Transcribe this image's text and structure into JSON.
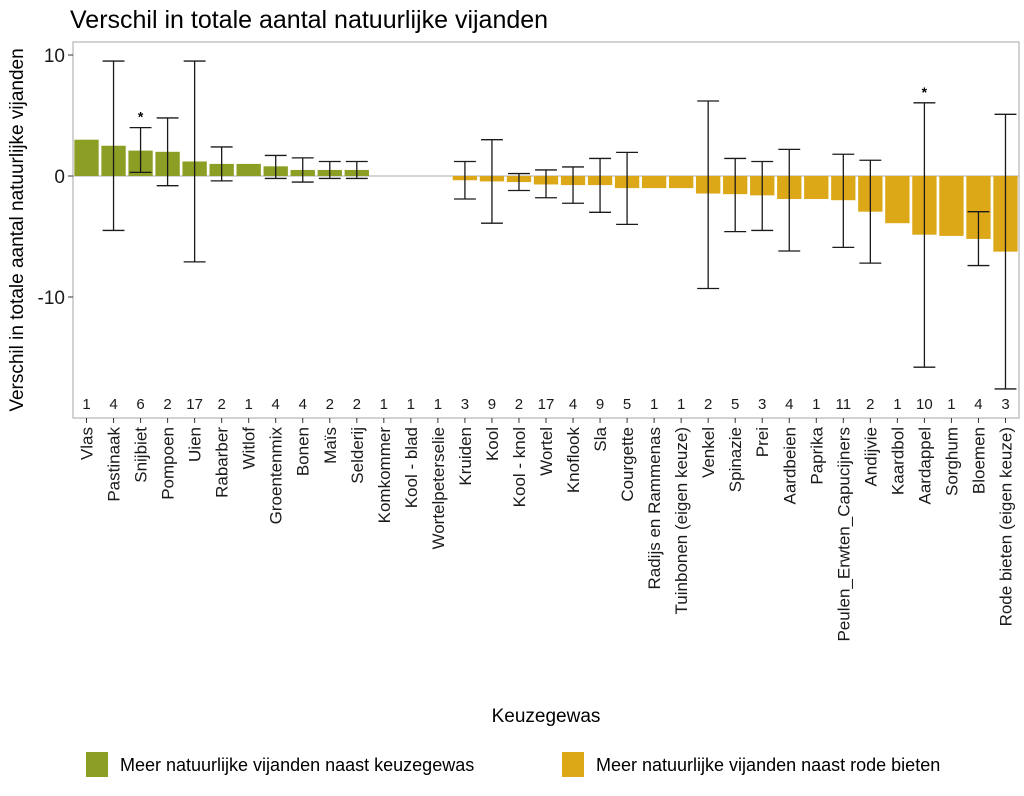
{
  "chart_data": {
    "type": "bar",
    "title": "Verschil in totale aantal natuurlijke vijanden",
    "xlabel": "Keuzegewas",
    "ylabel": "Verschil in totale aantal natuurlijke vijanden",
    "ylim": [
      -19.5,
      10.5
    ],
    "yticks": [
      10,
      0,
      -10
    ],
    "ytick_labels": [
      "10",
      "0",
      "-10"
    ],
    "grid": false,
    "legend_position": "bottom",
    "colors": {
      "positive": "#8D9E24",
      "negative": "#DDA818",
      "errorbar": "#1a1a1a",
      "zero_line": "#bdbdbd"
    },
    "legend": [
      {
        "label": "Meer natuurlijke vijanden naast keuzegewas",
        "color": "#8D9E24"
      },
      {
        "label": "Meer natuurlijke vijanden naast rode bieten",
        "color": "#DDA818"
      }
    ],
    "categories": [
      "Vlas",
      "Pastinaak",
      "Snijbiet",
      "Pompoen",
      "Uien",
      "Rabarber",
      "Witlof",
      "Groentenmix",
      "Bonen",
      "Maïs",
      "Selderij",
      "Komkommer",
      "Kool - blad",
      "Wortelpeterselie",
      "Kruiden",
      "Kool",
      "Kool - knol",
      "Wortel",
      "Knoflook",
      "Sla",
      "Courgette",
      "Radijs en Rammenas",
      "Tuinbonen (eigen keuze)",
      "Venkel",
      "Spinazie",
      "Prei",
      "Aardbeien",
      "Paprika",
      "Peulen_Erwten_Capucijners",
      "Andijvie",
      "Kaardbol",
      "Aardappel",
      "Sorghum",
      "Bloemen",
      "Rode bieten (eigen keuze)"
    ],
    "values": [
      3.0,
      2.5,
      2.1,
      2.0,
      1.2,
      1.0,
      1.0,
      0.8,
      0.5,
      0.5,
      0.5,
      null,
      null,
      null,
      -0.35,
      -0.45,
      -0.5,
      -0.7,
      -0.75,
      -0.75,
      -1.0,
      -1.0,
      -1.0,
      -1.45,
      -1.5,
      -1.6,
      -1.9,
      -1.9,
      -2.0,
      -2.95,
      -3.9,
      -4.85,
      -4.95,
      -5.2,
      -6.25
    ],
    "error_low": [
      null,
      -4.5,
      0.3,
      -0.8,
      -7.1,
      -0.4,
      null,
      -0.2,
      -0.5,
      -0.2,
      -0.2,
      null,
      null,
      null,
      -1.9,
      -3.9,
      -1.2,
      -1.8,
      -2.25,
      -3.0,
      -4.0,
      null,
      null,
      -9.3,
      -4.6,
      -4.5,
      -6.2,
      null,
      -5.9,
      -7.2,
      null,
      -15.8,
      null,
      -7.4,
      -17.6
    ],
    "error_high": [
      null,
      9.5,
      4.0,
      4.8,
      9.5,
      2.4,
      null,
      1.7,
      1.5,
      1.2,
      1.2,
      null,
      null,
      null,
      1.2,
      3.0,
      0.2,
      0.5,
      0.75,
      1.45,
      1.95,
      null,
      null,
      6.2,
      1.45,
      1.2,
      2.2,
      null,
      1.8,
      1.3,
      null,
      6.05,
      null,
      -2.95,
      5.1
    ],
    "n": [
      "1",
      "4",
      "6",
      "2",
      "17",
      "2",
      "1",
      "4",
      "4",
      "2",
      "2",
      "1",
      "1",
      "1",
      "3",
      "9",
      "2",
      "17",
      "4",
      "9",
      "5",
      "1",
      "1",
      "2",
      "5",
      "3",
      "4",
      "1",
      "11",
      "2",
      "1",
      "10",
      "1",
      "4",
      "3"
    ],
    "significant": [
      "Snijbiet",
      "Aardappel"
    ],
    "significance_marker": "*"
  }
}
